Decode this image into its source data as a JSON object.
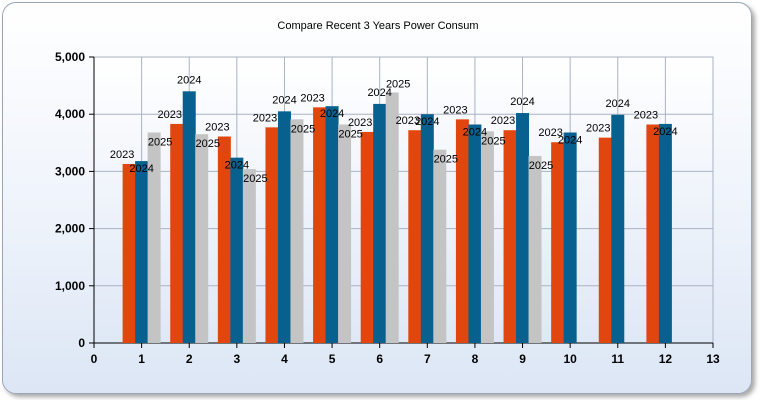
{
  "chart_data": {
    "type": "bar",
    "title": "Compare Recent 3 Years Power Consum",
    "xlabel": "",
    "ylabel": "",
    "xlim": [
      0,
      13
    ],
    "ylim": [
      0,
      5000
    ],
    "x_ticks": [
      "0",
      "1",
      "2",
      "3",
      "4",
      "5",
      "6",
      "7",
      "8",
      "9",
      "10",
      "11",
      "12",
      "13"
    ],
    "y_ticks": [
      "0",
      "1,000",
      "2,000",
      "3,000",
      "4,000",
      "5,000"
    ],
    "y_tick_values": [
      0,
      1000,
      2000,
      3000,
      4000,
      5000
    ],
    "grid": true,
    "legend": "none",
    "x": [
      1,
      2,
      3,
      4,
      5,
      6,
      7,
      8,
      9,
      10,
      11,
      12
    ],
    "series": [
      {
        "name": "2023",
        "color": "#e2460f",
        "values": [
          3130,
          3830,
          3610,
          3770,
          4120,
          3690,
          3720,
          3910,
          3720,
          3510,
          3590,
          3820
        ]
      },
      {
        "name": "2024",
        "color": "#07608e",
        "values": [
          3180,
          4400,
          3240,
          4050,
          4140,
          4180,
          4000,
          3820,
          4020,
          3680,
          3990,
          3830
        ]
      },
      {
        "name": "2025",
        "color": "#c4c4c4",
        "values": [
          3680,
          3650,
          3040,
          3910,
          3820,
          4380,
          3380,
          3700,
          3270,
          null,
          null,
          null
        ]
      }
    ]
  }
}
